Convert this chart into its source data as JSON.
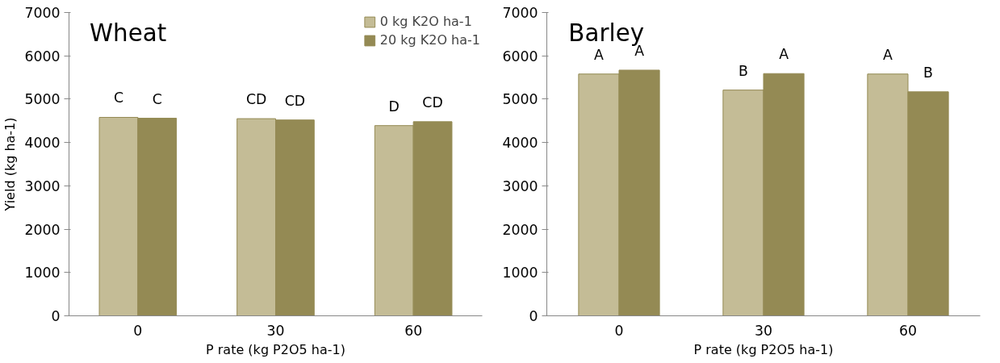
{
  "chart_data": [
    {
      "type": "bar",
      "title": "Wheat",
      "xlabel": "P rate (kg P2O5 ha-1)",
      "ylabel": "Yield (kg ha-1)",
      "categories": [
        "0",
        "30",
        "60"
      ],
      "series": [
        {
          "name": "0 kg K2O ha-1",
          "color": "#c4bc96",
          "values": [
            4580,
            4550,
            4390
          ]
        },
        {
          "name": "20 kg K2O ha-1",
          "color": "#948a54",
          "values": [
            4560,
            4520,
            4480
          ]
        }
      ],
      "ylim": [
        0,
        7000
      ],
      "yticks": [
        0,
        1000,
        2000,
        3000,
        4000,
        5000,
        6000,
        7000
      ],
      "legend": "top right",
      "annotations": [
        {
          "text": "C",
          "x": "0",
          "y": 4580
        },
        {
          "text": "C",
          "x": "0",
          "y": 4560
        },
        {
          "text": "CD",
          "x": "30",
          "y": 4550
        },
        {
          "text": "CD",
          "x": "30",
          "y": 4520
        },
        {
          "text": "D",
          "x": "60",
          "y": 4390
        },
        {
          "text": "CD",
          "x": "60",
          "y": 4480
        }
      ]
    },
    {
      "type": "bar",
      "title": "Barley",
      "xlabel": "P rate (kg P2O5 ha-1)",
      "categories": [
        "0",
        "30",
        "60"
      ],
      "series": [
        {
          "color": "#c4bc96",
          "values": [
            5580,
            5210,
            5580
          ]
        },
        {
          "color": "#948a54",
          "values": [
            5670,
            5590,
            5170
          ]
        }
      ],
      "ylim": [
        0,
        7000
      ],
      "yticks": [
        0,
        1000,
        2000,
        3000,
        4000,
        5000,
        6000,
        7000
      ],
      "annotations": [
        {
          "text": "A",
          "x": "0",
          "y": 5580
        },
        {
          "text": "A",
          "x": "0",
          "y": 5670
        },
        {
          "text": "B",
          "x": "30",
          "y": 5210
        },
        {
          "text": "A",
          "x": "30",
          "y": 5590
        },
        {
          "text": "A",
          "x": "60",
          "y": 5580
        },
        {
          "text": "B",
          "x": "60",
          "y": 5170
        }
      ]
    }
  ]
}
